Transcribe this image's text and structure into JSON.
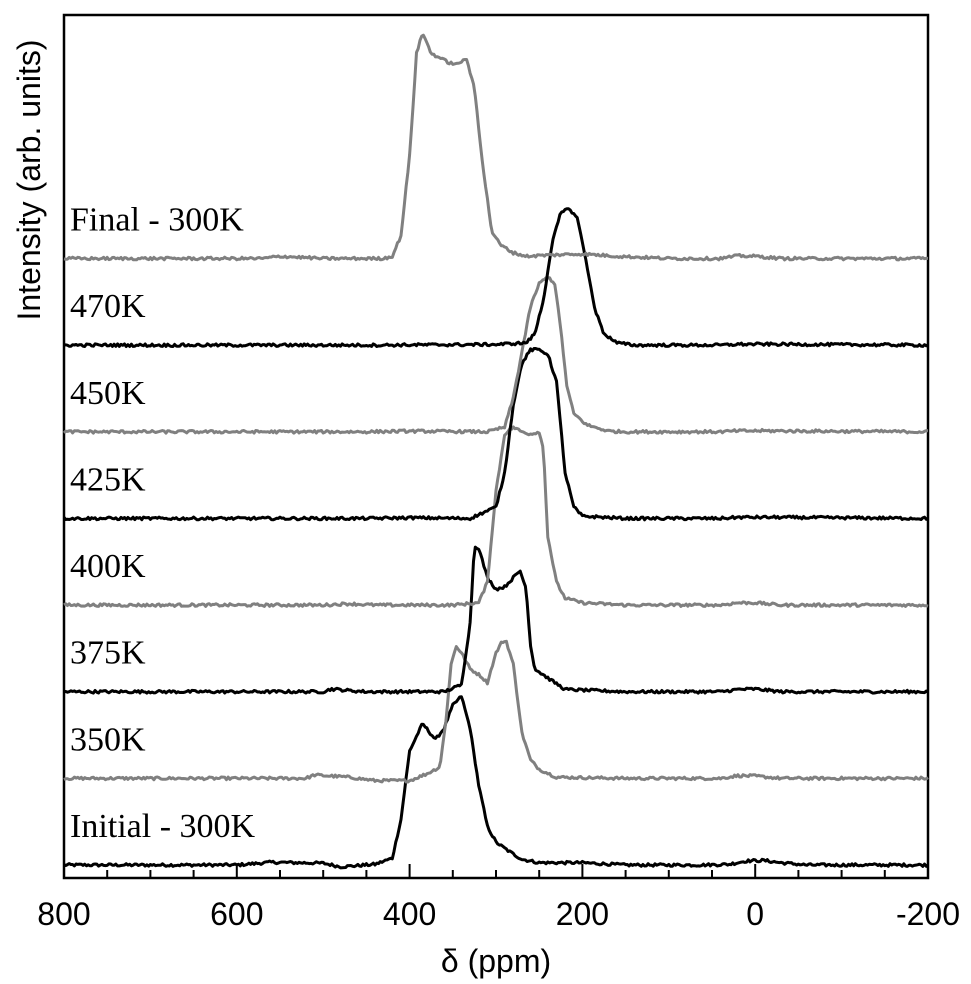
{
  "chart_data": {
    "type": "line",
    "title": "",
    "xlabel": "δ (ppm)",
    "ylabel": "Intensity (arb. units)",
    "xlim": [
      800,
      -200
    ],
    "x_reversed": true,
    "xticks": [
      800,
      600,
      400,
      200,
      0,
      -200
    ],
    "yticks_labeled": false,
    "grid": false,
    "legend": "none",
    "series_labels_inline": true,
    "series": [
      {
        "name": "Initial - 300K",
        "color": "#000000",
        "offset": 0,
        "points": [
          [
            800,
            0
          ],
          [
            600,
            0
          ],
          [
            560,
            0.012
          ],
          [
            500,
            0.008
          ],
          [
            480,
            -0.008
          ],
          [
            440,
            0.003
          ],
          [
            420,
            0.03
          ],
          [
            410,
            0.2
          ],
          [
            400,
            0.5
          ],
          [
            385,
            0.62
          ],
          [
            370,
            0.55
          ],
          [
            360,
            0.6
          ],
          [
            350,
            0.7
          ],
          [
            340,
            0.74
          ],
          [
            330,
            0.6
          ],
          [
            320,
            0.35
          ],
          [
            310,
            0.17
          ],
          [
            300,
            0.1
          ],
          [
            285,
            0.06
          ],
          [
            270,
            0.025
          ],
          [
            250,
            0.01
          ],
          [
            200,
            0.01
          ],
          [
            150,
            0
          ],
          [
            60,
            0
          ],
          [
            30,
            0.003
          ],
          [
            10,
            0.018
          ],
          [
            -10,
            0.02
          ],
          [
            -30,
            0.01
          ],
          [
            -60,
            0
          ],
          [
            -200,
            0
          ]
        ]
      },
      {
        "name": "350K",
        "color": "#808080",
        "offset": 0.38,
        "points": [
          [
            800,
            0
          ],
          [
            520,
            0
          ],
          [
            510,
            0.015
          ],
          [
            470,
            0.005
          ],
          [
            440,
            -0.01
          ],
          [
            400,
            -0.01
          ],
          [
            380,
            0.02
          ],
          [
            365,
            0.05
          ],
          [
            358,
            0.25
          ],
          [
            352,
            0.5
          ],
          [
            346,
            0.58
          ],
          [
            340,
            0.55
          ],
          [
            330,
            0.48
          ],
          [
            318,
            0.45
          ],
          [
            310,
            0.42
          ],
          [
            300,
            0.55
          ],
          [
            293,
            0.6
          ],
          [
            288,
            0.6
          ],
          [
            280,
            0.5
          ],
          [
            270,
            0.2
          ],
          [
            260,
            0.08
          ],
          [
            250,
            0.04
          ],
          [
            230,
            0.005
          ],
          [
            150,
            0
          ],
          [
            40,
            0
          ],
          [
            20,
            0.012
          ],
          [
            0,
            0.01
          ],
          [
            -30,
            0
          ],
          [
            -200,
            0
          ]
        ]
      },
      {
        "name": "375K",
        "color": "#000000",
        "offset": 0.76,
        "points": [
          [
            800,
            0
          ],
          [
            500,
            0
          ],
          [
            490,
            0.012
          ],
          [
            470,
            0.005
          ],
          [
            450,
            0
          ],
          [
            400,
            0
          ],
          [
            360,
            0
          ],
          [
            340,
            0.03
          ],
          [
            330,
            0.3
          ],
          [
            325,
            0.64
          ],
          [
            320,
            0.63
          ],
          [
            310,
            0.5
          ],
          [
            300,
            0.45
          ],
          [
            290,
            0.46
          ],
          [
            280,
            0.5
          ],
          [
            272,
            0.53
          ],
          [
            265,
            0.45
          ],
          [
            260,
            0.2
          ],
          [
            255,
            0.1
          ],
          [
            240,
            0.06
          ],
          [
            220,
            0.01
          ],
          [
            150,
            0
          ],
          [
            40,
            0
          ],
          [
            20,
            0.01
          ],
          [
            0,
            0.012
          ],
          [
            -30,
            0
          ],
          [
            -200,
            0
          ]
        ]
      },
      {
        "name": "400K",
        "color": "#808080",
        "offset": 1.14,
        "points": [
          [
            800,
            0
          ],
          [
            500,
            0
          ],
          [
            470,
            0.006
          ],
          [
            440,
            0
          ],
          [
            350,
            0
          ],
          [
            320,
            0.01
          ],
          [
            310,
            0.1
          ],
          [
            300,
            0.5
          ],
          [
            290,
            0.75
          ],
          [
            280,
            0.78
          ],
          [
            270,
            0.76
          ],
          [
            260,
            0.75
          ],
          [
            250,
            0.76
          ],
          [
            245,
            0.68
          ],
          [
            240,
            0.3
          ],
          [
            230,
            0.1
          ],
          [
            220,
            0.03
          ],
          [
            200,
            0.01
          ],
          [
            150,
            0
          ],
          [
            40,
            0
          ],
          [
            20,
            0.01
          ],
          [
            0,
            0.01
          ],
          [
            -30,
            0
          ],
          [
            -200,
            0
          ]
        ]
      },
      {
        "name": "425K",
        "color": "#000000",
        "offset": 1.52,
        "points": [
          [
            800,
            0
          ],
          [
            450,
            0
          ],
          [
            400,
            0.003
          ],
          [
            330,
            0
          ],
          [
            300,
            0.05
          ],
          [
            290,
            0.2
          ],
          [
            280,
            0.5
          ],
          [
            270,
            0.68
          ],
          [
            260,
            0.74
          ],
          [
            250,
            0.74
          ],
          [
            240,
            0.72
          ],
          [
            230,
            0.6
          ],
          [
            225,
            0.4
          ],
          [
            220,
            0.2
          ],
          [
            210,
            0.05
          ],
          [
            200,
            0.01
          ],
          [
            150,
            0
          ],
          [
            40,
            0
          ],
          [
            20,
            0.005
          ],
          [
            -20,
            0.005
          ],
          [
            -200,
            0
          ]
        ]
      },
      {
        "name": "450K",
        "color": "#808080",
        "offset": 1.9,
        "points": [
          [
            800,
            0
          ],
          [
            450,
            0
          ],
          [
            400,
            0.003
          ],
          [
            310,
            0
          ],
          [
            290,
            0.02
          ],
          [
            280,
            0.15
          ],
          [
            270,
            0.35
          ],
          [
            260,
            0.55
          ],
          [
            250,
            0.65
          ],
          [
            240,
            0.68
          ],
          [
            232,
            0.65
          ],
          [
            225,
            0.45
          ],
          [
            218,
            0.2
          ],
          [
            210,
            0.08
          ],
          [
            195,
            0.03
          ],
          [
            170,
            0.003
          ],
          [
            150,
            0
          ],
          [
            40,
            0
          ],
          [
            20,
            0.004
          ],
          [
            -20,
            0.004
          ],
          [
            -200,
            0
          ]
        ]
      },
      {
        "name": "470K",
        "color": "#000000",
        "offset": 2.28,
        "points": [
          [
            800,
            0
          ],
          [
            450,
            0
          ],
          [
            300,
            0.003
          ],
          [
            265,
            0.01
          ],
          [
            255,
            0.05
          ],
          [
            245,
            0.2
          ],
          [
            235,
            0.45
          ],
          [
            225,
            0.58
          ],
          [
            215,
            0.6
          ],
          [
            205,
            0.55
          ],
          [
            195,
            0.35
          ],
          [
            185,
            0.15
          ],
          [
            175,
            0.05
          ],
          [
            160,
            0.01
          ],
          [
            140,
            0
          ],
          [
            40,
            0
          ],
          [
            20,
            0.004
          ],
          [
            -20,
            0.004
          ],
          [
            -200,
            0
          ]
        ]
      },
      {
        "name": "Final - 300K",
        "color": "#808080",
        "offset": 2.66,
        "points": [
          [
            800,
            0
          ],
          [
            570,
            0
          ],
          [
            550,
            0.01
          ],
          [
            520,
            0.004
          ],
          [
            500,
            0
          ],
          [
            430,
            0
          ],
          [
            420,
            0.01
          ],
          [
            410,
            0.1
          ],
          [
            400,
            0.45
          ],
          [
            392,
            0.9
          ],
          [
            385,
            0.99
          ],
          [
            375,
            0.9
          ],
          [
            365,
            0.88
          ],
          [
            355,
            0.86
          ],
          [
            345,
            0.85
          ],
          [
            335,
            0.88
          ],
          [
            325,
            0.75
          ],
          [
            315,
            0.4
          ],
          [
            305,
            0.12
          ],
          [
            295,
            0.06
          ],
          [
            280,
            0.025
          ],
          [
            265,
            0.01
          ],
          [
            240,
            0.015
          ],
          [
            200,
            0.02
          ],
          [
            160,
            0.01
          ],
          [
            100,
            0
          ],
          [
            40,
            0
          ],
          [
            20,
            0.012
          ],
          [
            0,
            0.01
          ],
          [
            -30,
            0
          ],
          [
            -200,
            0
          ]
        ]
      }
    ]
  }
}
